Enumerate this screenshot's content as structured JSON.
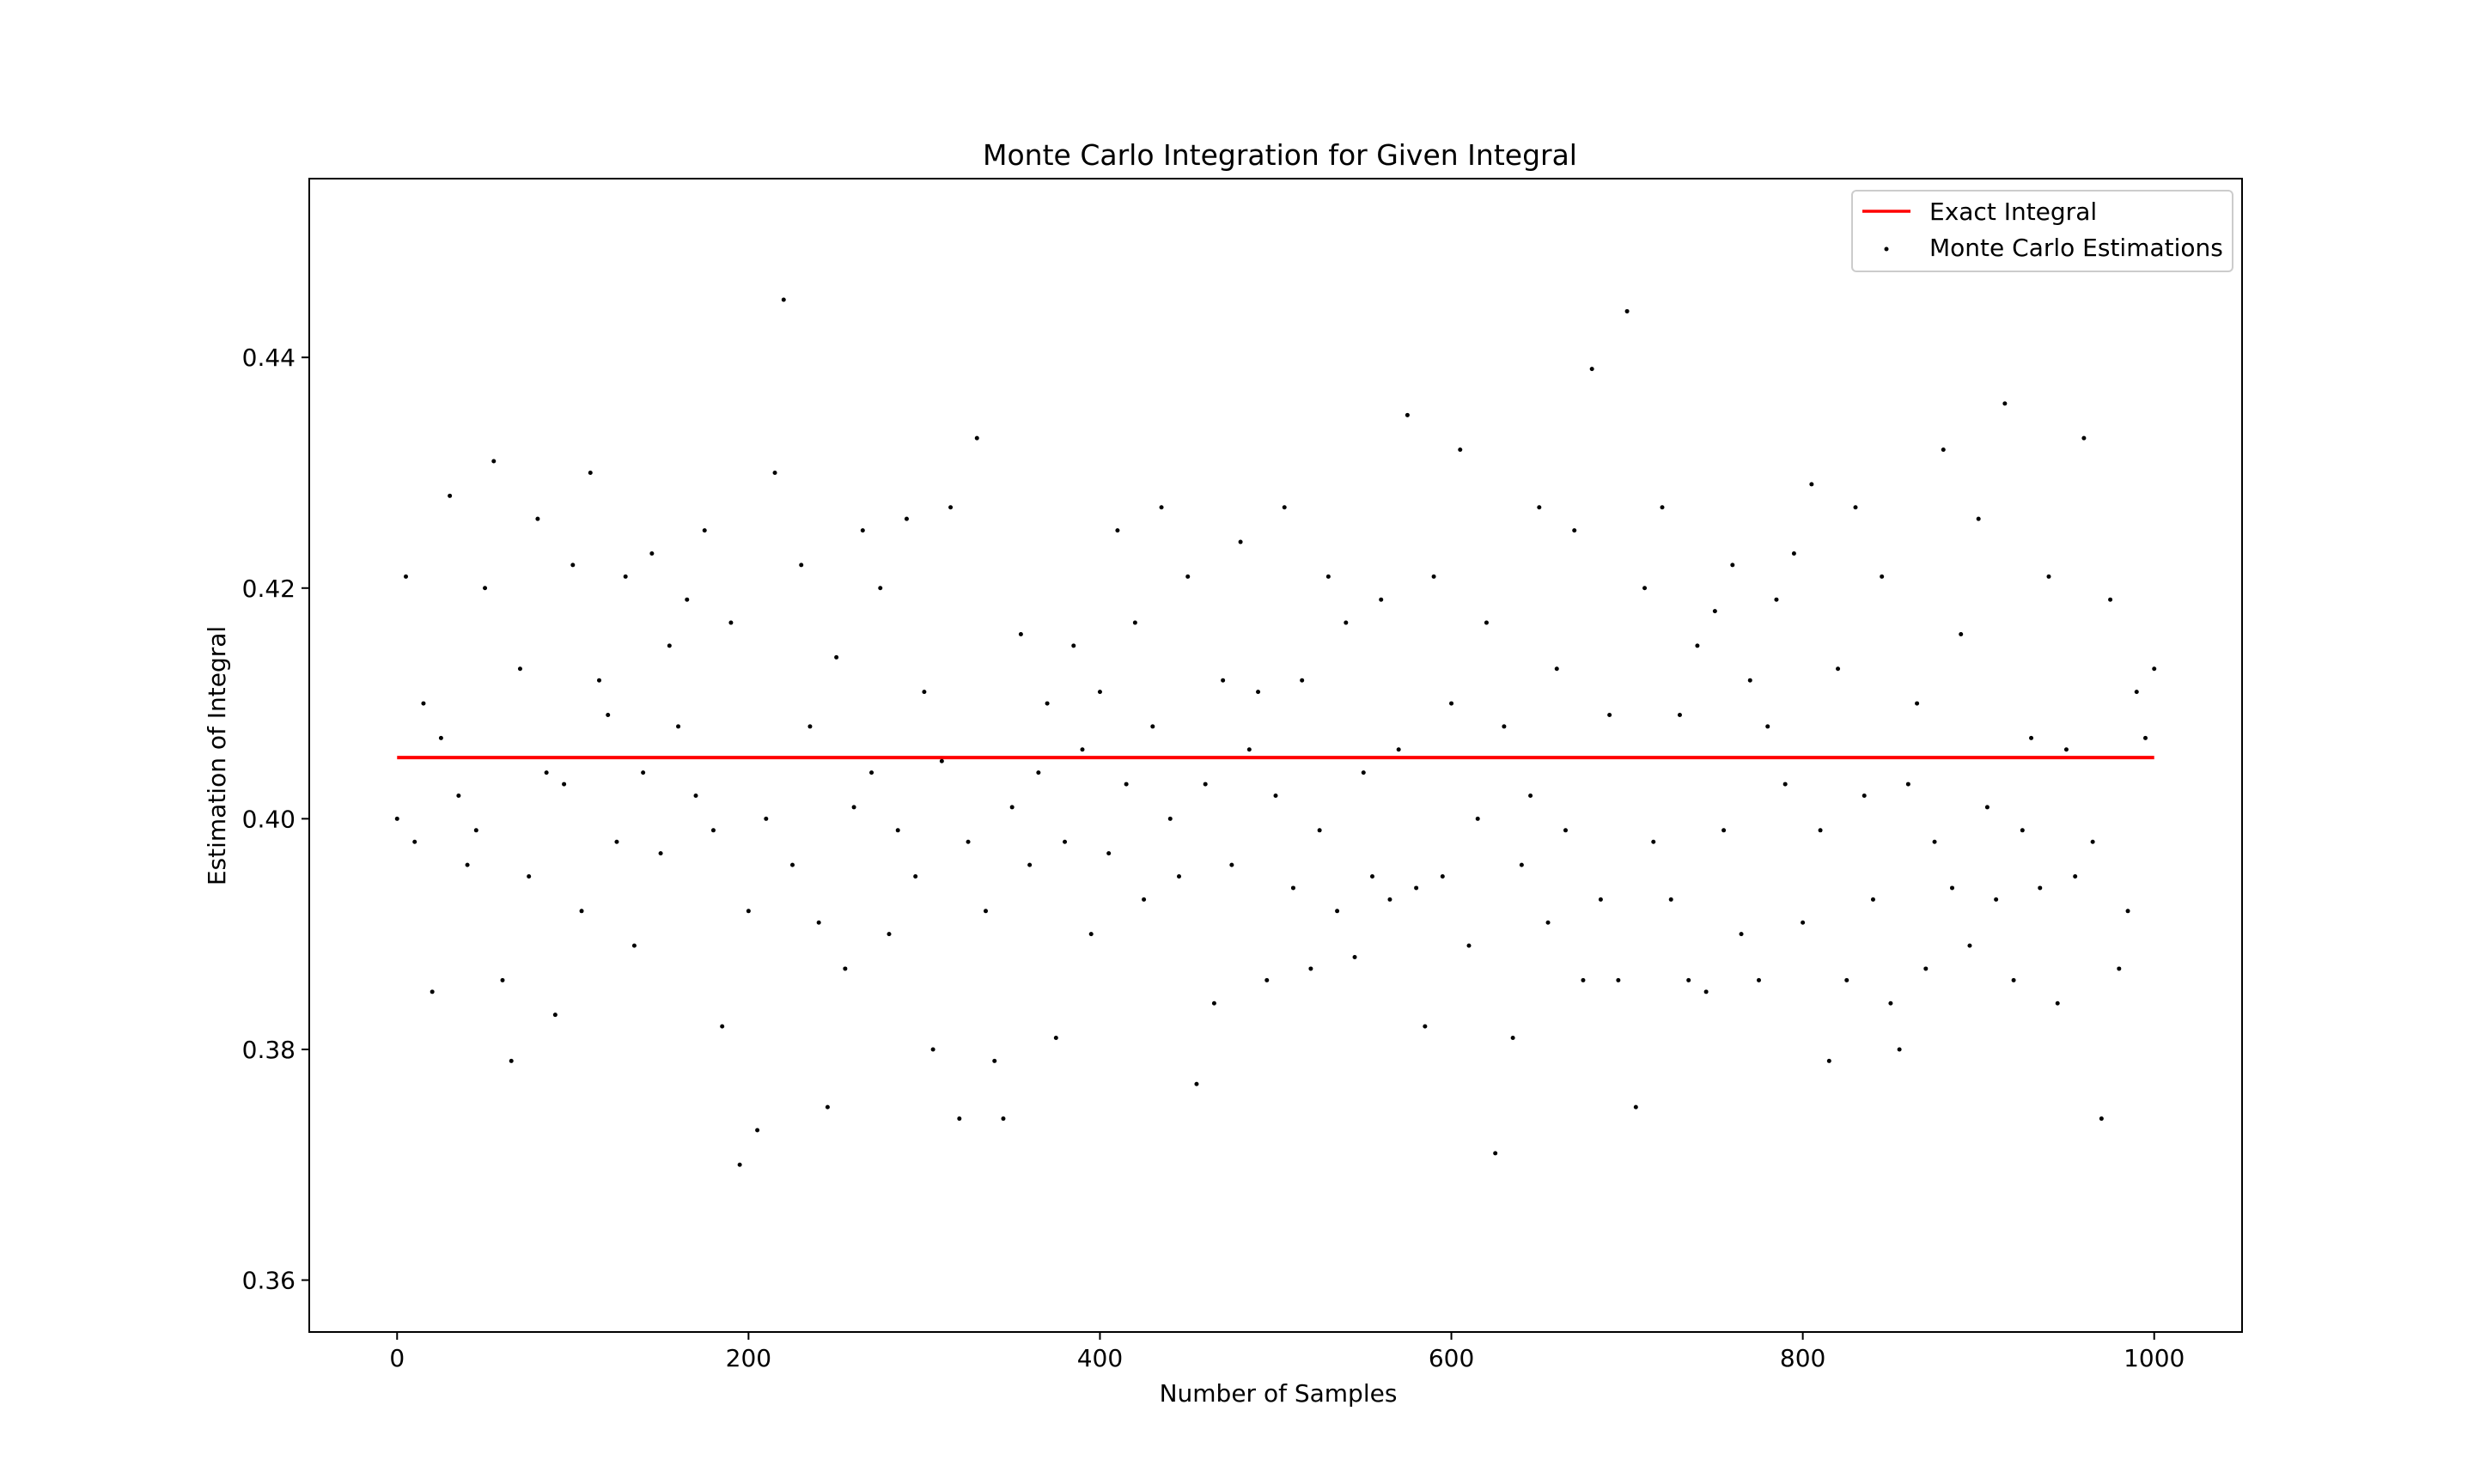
{
  "chart_data": {
    "type": "scatter",
    "title": "Monte Carlo Integration for Given Integral",
    "xlabel": "Number of Samples",
    "ylabel": "Estimation of Integral",
    "xlim": [
      -50,
      1050
    ],
    "ylim": [
      0.3555,
      0.4555
    ],
    "xticks": [
      0,
      200,
      400,
      600,
      800,
      1000
    ],
    "yticks": [
      0.36,
      0.38,
      0.4,
      0.42,
      0.44
    ],
    "xtick_labels": [
      "0",
      "200",
      "400",
      "600",
      "800",
      "1000"
    ],
    "ytick_labels": [
      "0.36",
      "0.38",
      "0.40",
      "0.42",
      "0.44"
    ],
    "grid": false,
    "legend_position": "top-right",
    "series": [
      {
        "name": "Exact Integral",
        "kind": "line",
        "color": "#ff0000",
        "x": [
          0,
          1000
        ],
        "y": [
          0.4053,
          0.4053
        ]
      },
      {
        "name": "Monte Carlo Estimations",
        "kind": "scatter",
        "color": "#000000",
        "x": [
          0,
          5,
          10,
          15,
          20,
          25,
          30,
          35,
          40,
          45,
          50,
          55,
          60,
          65,
          70,
          75,
          80,
          85,
          90,
          95,
          100,
          105,
          110,
          115,
          120,
          125,
          130,
          135,
          140,
          145,
          150,
          155,
          160,
          165,
          170,
          175,
          180,
          185,
          190,
          195,
          200,
          205,
          210,
          215,
          220,
          225,
          230,
          235,
          240,
          245,
          250,
          255,
          260,
          265,
          270,
          275,
          280,
          285,
          290,
          295,
          300,
          305,
          310,
          315,
          320,
          325,
          330,
          335,
          340,
          345,
          350,
          355,
          360,
          365,
          370,
          375,
          380,
          385,
          390,
          395,
          400,
          405,
          410,
          415,
          420,
          425,
          430,
          435,
          440,
          445,
          450,
          455,
          460,
          465,
          470,
          475,
          480,
          485,
          490,
          495,
          500,
          505,
          510,
          515,
          520,
          525,
          530,
          535,
          540,
          545,
          550,
          555,
          560,
          565,
          570,
          575,
          580,
          585,
          590,
          595,
          600,
          605,
          610,
          615,
          620,
          625,
          630,
          635,
          640,
          645,
          650,
          655,
          660,
          665,
          670,
          675,
          680,
          685,
          690,
          695,
          700,
          705,
          710,
          715,
          720,
          725,
          730,
          735,
          740,
          745,
          750,
          755,
          760,
          765,
          770,
          775,
          780,
          785,
          790,
          795,
          800,
          805,
          810,
          815,
          820,
          825,
          830,
          835,
          840,
          845,
          850,
          855,
          860,
          865,
          870,
          875,
          880,
          885,
          890,
          895,
          900,
          905,
          910,
          915,
          920,
          925,
          930,
          935,
          940,
          945,
          950,
          955,
          960,
          965,
          970,
          975,
          980,
          985,
          990,
          995,
          1000
        ],
        "y": [
          0.4,
          0.421,
          0.398,
          0.41,
          0.385,
          0.407,
          0.428,
          0.402,
          0.396,
          0.399,
          0.42,
          0.431,
          0.386,
          0.379,
          0.413,
          0.395,
          0.426,
          0.404,
          0.383,
          0.403,
          0.422,
          0.392,
          0.43,
          0.412,
          0.409,
          0.398,
          0.421,
          0.389,
          0.404,
          0.423,
          0.397,
          0.415,
          0.408,
          0.419,
          0.402,
          0.425,
          0.399,
          0.382,
          0.417,
          0.37,
          0.392,
          0.373,
          0.4,
          0.43,
          0.445,
          0.396,
          0.422,
          0.408,
          0.391,
          0.375,
          0.414,
          0.387,
          0.401,
          0.425,
          0.404,
          0.42,
          0.39,
          0.399,
          0.426,
          0.395,
          0.411,
          0.38,
          0.405,
          0.427,
          0.374,
          0.398,
          0.433,
          0.392,
          0.379,
          0.374,
          0.401,
          0.416,
          0.396,
          0.404,
          0.41,
          0.381,
          0.398,
          0.415,
          0.406,
          0.39,
          0.411,
          0.397,
          0.425,
          0.403,
          0.417,
          0.393,
          0.408,
          0.427,
          0.4,
          0.395,
          0.421,
          0.377,
          0.403,
          0.384,
          0.412,
          0.396,
          0.424,
          0.406,
          0.411,
          0.386,
          0.402,
          0.427,
          0.394,
          0.412,
          0.387,
          0.399,
          0.421,
          0.392,
          0.417,
          0.388,
          0.404,
          0.395,
          0.419,
          0.393,
          0.406,
          0.435,
          0.394,
          0.382,
          0.421,
          0.395,
          0.41,
          0.432,
          0.389,
          0.4,
          0.417,
          0.371,
          0.408,
          0.381,
          0.396,
          0.402,
          0.427,
          0.391,
          0.413,
          0.399,
          0.425,
          0.386,
          0.439,
          0.393,
          0.409,
          0.386,
          0.444,
          0.375,
          0.42,
          0.398,
          0.427,
          0.393,
          0.409,
          0.386,
          0.415,
          0.385,
          0.418,
          0.399,
          0.422,
          0.39,
          0.412,
          0.386,
          0.408,
          0.419,
          0.403,
          0.423,
          0.391,
          0.429,
          0.399,
          0.379,
          0.413,
          0.386,
          0.427,
          0.402,
          0.393,
          0.421,
          0.384,
          0.38,
          0.403,
          0.41,
          0.387,
          0.398,
          0.432,
          0.394,
          0.416,
          0.389,
          0.426,
          0.401,
          0.393,
          0.436,
          0.386,
          0.399,
          0.407,
          0.394,
          0.421,
          0.384,
          0.406,
          0.395,
          0.433,
          0.398,
          0.374,
          0.419,
          0.387,
          0.392,
          0.411,
          0.407,
          0.413
        ]
      }
    ]
  }
}
